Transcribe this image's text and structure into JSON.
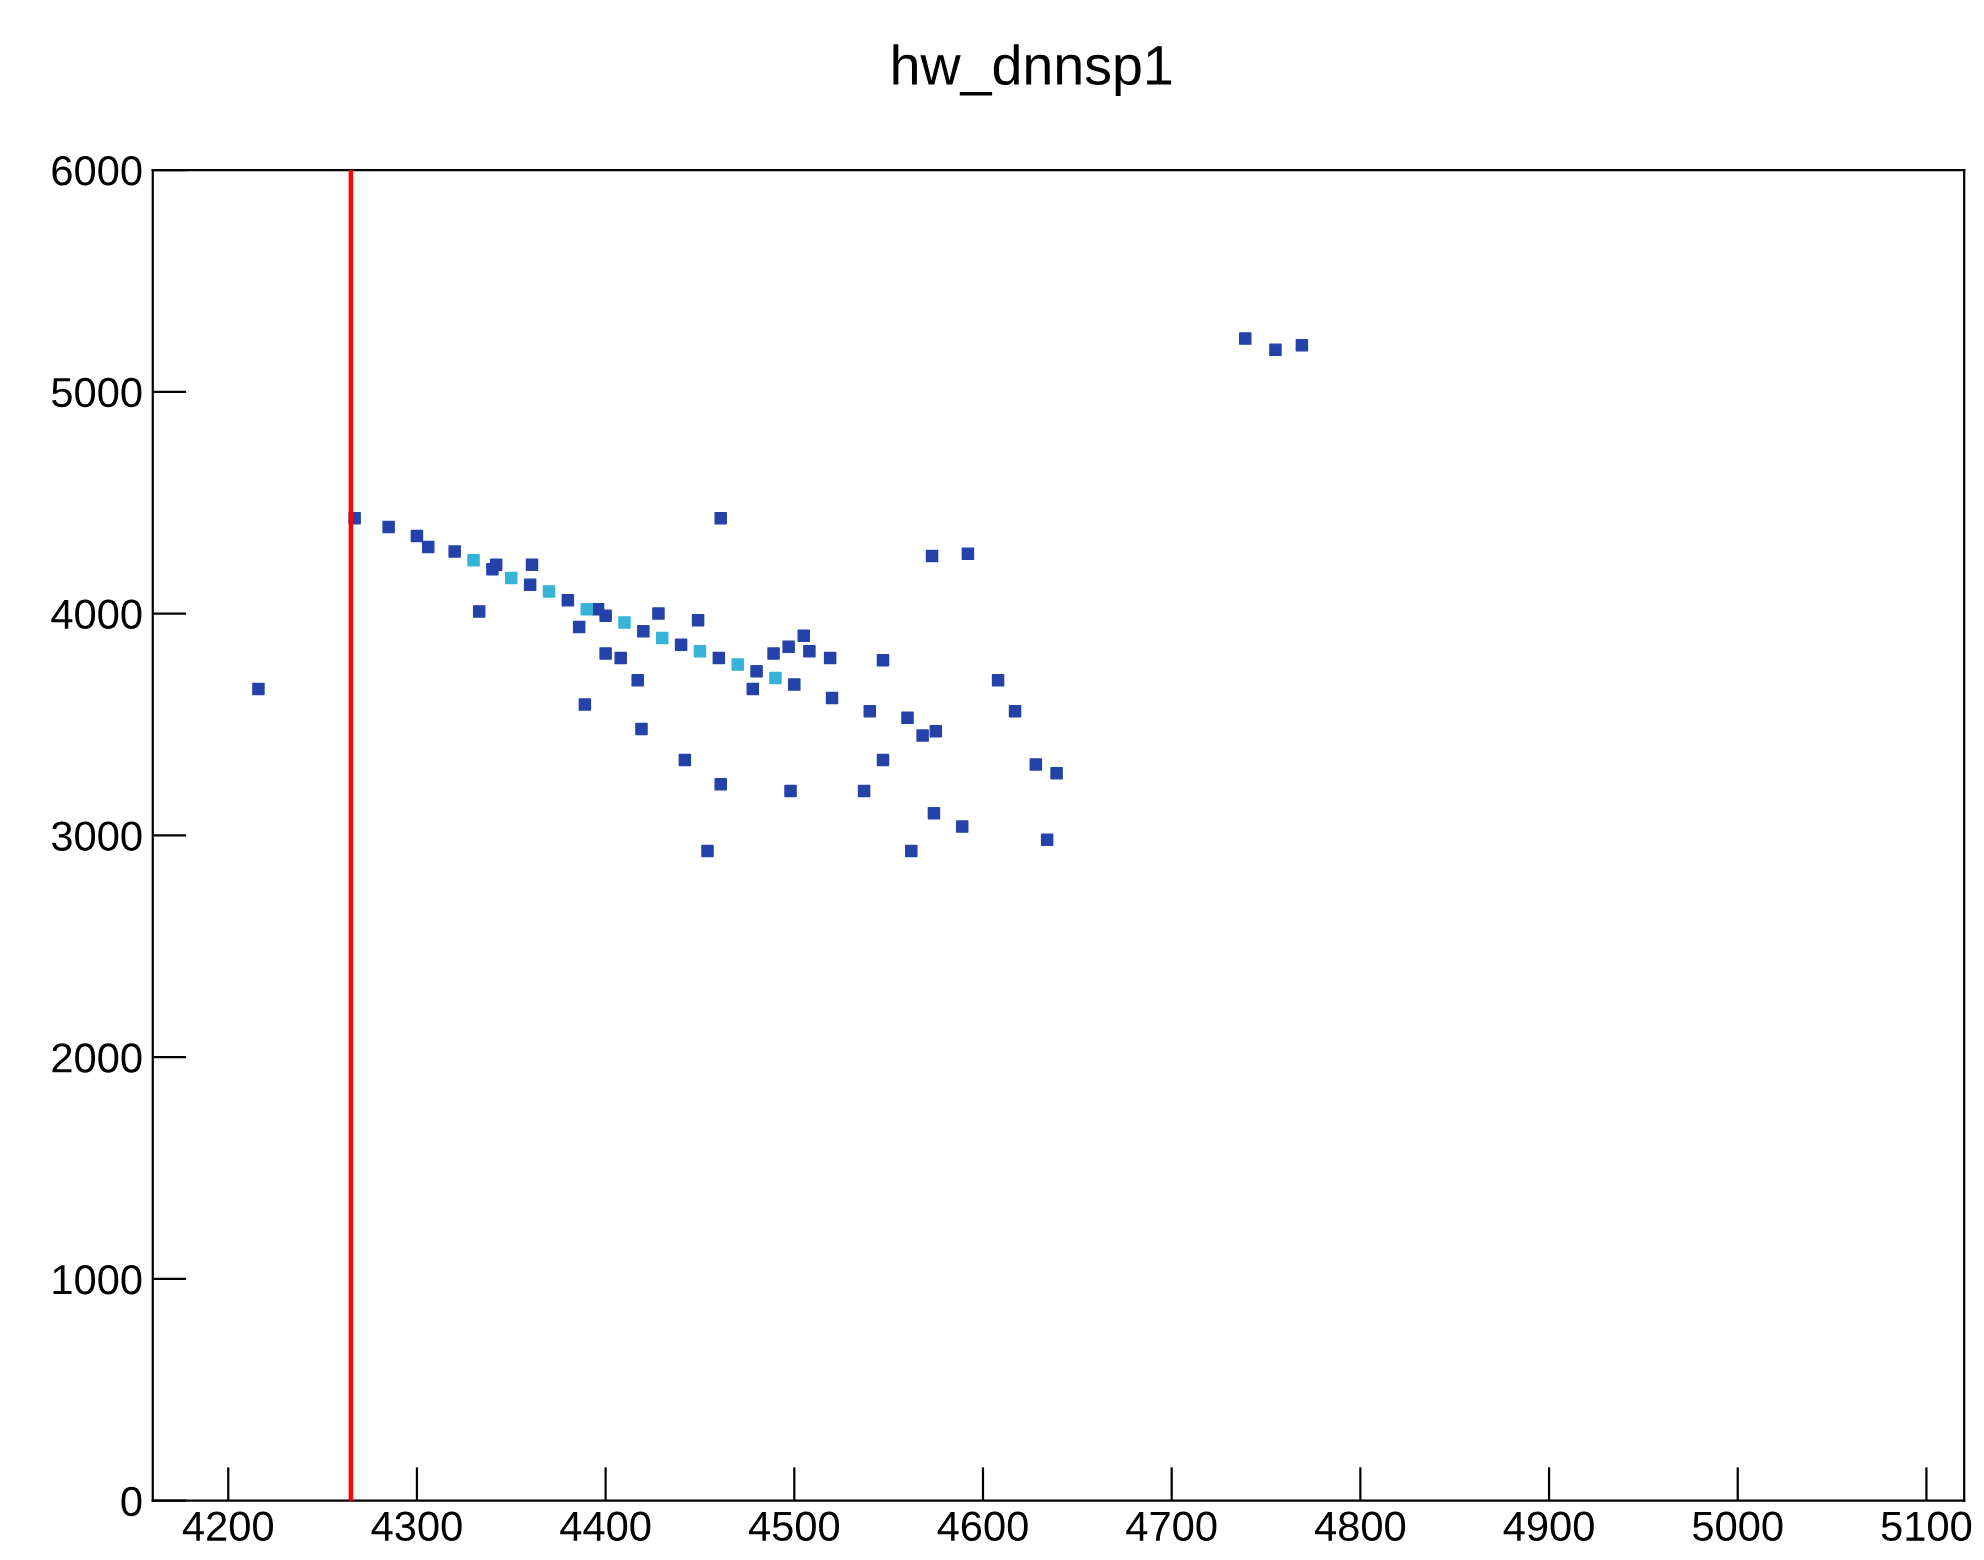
{
  "chart_data": {
    "type": "scatter",
    "title": "hw_dnnsp1",
    "xlim": [
      4160,
      5120
    ],
    "xticks": [
      4200,
      4300,
      4400,
      4500,
      4600,
      4700,
      4800,
      4900,
      5000,
      5100
    ],
    "ylim": [
      0,
      6000
    ],
    "yticks": [
      0,
      1000,
      2000,
      3000,
      4000,
      5000,
      6000
    ],
    "grid": false,
    "legend": false,
    "marker": "square",
    "series": [
      {
        "color": "#2442a8",
        "x": [
          4267,
          4285,
          4300,
          4320,
          4340,
          4360,
          4380,
          4400,
          4420,
          4440,
          4460,
          4480,
          4500,
          4520,
          4540,
          4560,
          4428,
          4449,
          4497,
          4508,
          4519,
          4386,
          4400,
          4417,
          4216,
          4461,
          4573,
          4592,
          4478,
          4537,
          4454,
          4574,
          4589,
          4562,
          4634,
          4639,
          4628,
          4608,
          4617,
          4575,
          4739,
          4755,
          4769,
          4408,
          4419,
          4442,
          4461,
          4498,
          4389,
          4342,
          4306,
          4361,
          4396,
          4489,
          4505,
          4547,
          4568,
          4547,
          4333
        ],
        "values": [
          4430,
          4390,
          4350,
          4280,
          4200,
          4130,
          4060,
          3990,
          3920,
          3860,
          3800,
          3740,
          3680,
          3620,
          3560,
          3530,
          4000,
          3970,
          3850,
          3830,
          3800,
          3940,
          3820,
          3700,
          3660,
          4430,
          4260,
          4270,
          3660,
          3200,
          2930,
          3100,
          3040,
          2930,
          2980,
          3280,
          3320,
          3700,
          3560,
          3470,
          5240,
          5190,
          5210,
          3800,
          3480,
          3340,
          3230,
          3200,
          3590,
          4220,
          4300,
          4220,
          4020,
          3820,
          3900,
          3790,
          3450,
          3340,
          4010
        ]
      },
      {
        "color": "#35b4d8",
        "x": [
          4330,
          4350,
          4370,
          4390,
          4410,
          4430,
          4450,
          4470,
          4490
        ],
        "values": [
          4240,
          4160,
          4100,
          4020,
          3960,
          3890,
          3830,
          3770,
          3710
        ]
      }
    ],
    "ref_lines": [
      {
        "axis": "x",
        "value": 4265,
        "color": "#ff0000",
        "line_style": "solid"
      }
    ]
  }
}
